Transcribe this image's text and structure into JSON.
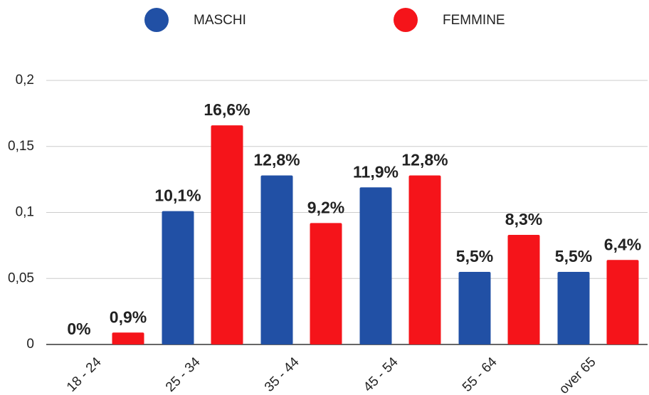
{
  "chart_data": {
    "type": "bar",
    "categories": [
      "18 - 24",
      "25 - 34",
      "35 - 44",
      "45 - 54",
      "55 - 64",
      "over 65"
    ],
    "series": [
      {
        "name": "MASCHI",
        "color": "#2150a5",
        "values": [
          0,
          0.101,
          0.128,
          0.119,
          0.055,
          0.055
        ],
        "value_labels": [
          "0%",
          "10,1%",
          "12,8%",
          "11,9%",
          "5,5%",
          "5,5%"
        ]
      },
      {
        "name": "FEMMINE",
        "color": "#f5141a",
        "values": [
          0.009,
          0.166,
          0.092,
          0.128,
          0.083,
          0.064
        ],
        "value_labels": [
          "0,9%",
          "16,6%",
          "9,2%",
          "12,8%",
          "8,3%",
          "6,4%"
        ]
      }
    ],
    "ylim": [
      0,
      0.2
    ],
    "yticks": [
      0,
      {
        "value": 0.05,
        "label": "0,05"
      },
      {
        "value": 0.1,
        "label": "0,1"
      },
      {
        "value": 0.15,
        "label": "0,15"
      },
      {
        "value": 0.2,
        "label": "0,2"
      }
    ],
    "grid": true,
    "legend": "top"
  }
}
